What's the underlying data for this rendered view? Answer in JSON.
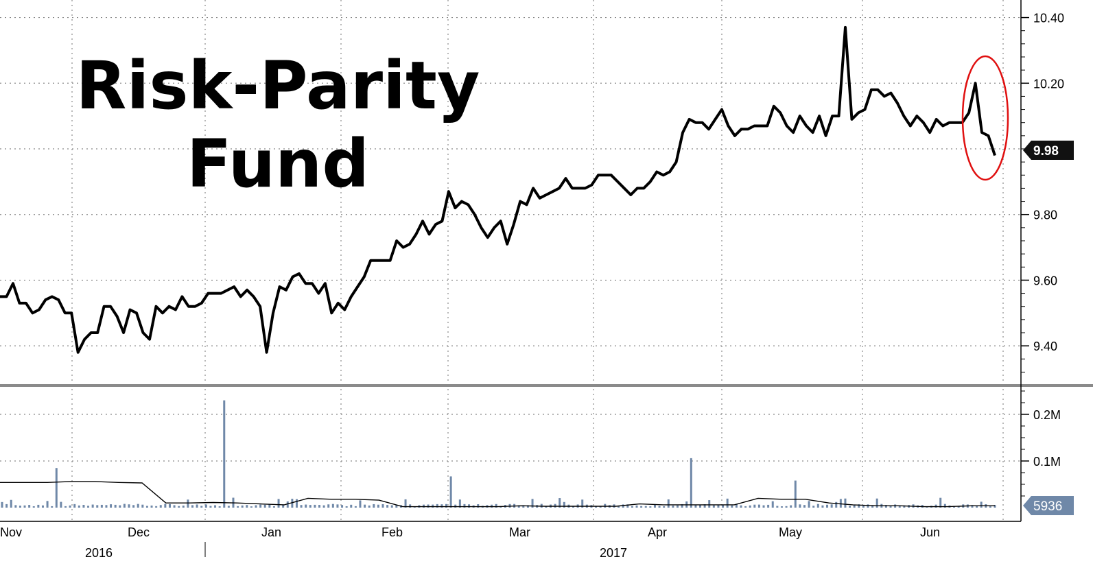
{
  "chart_data": [
    {
      "panel": "price",
      "type": "line",
      "title_lines": [
        "Risk-Parity",
        "Fund"
      ],
      "ylim": [
        9.3,
        10.42
      ],
      "yticks": [
        "10.40",
        "10.20",
        "9.80",
        "9.60",
        "9.40"
      ],
      "last_value_label": "9.98",
      "last_value": 9.98,
      "grid": true,
      "annotation": "red ellipse around the most recent decline",
      "series": [
        {
          "values": [
            9.55,
            9.55,
            9.59,
            9.53,
            9.53,
            9.5,
            9.51,
            9.54,
            9.55,
            9.54,
            9.5,
            9.5,
            9.38,
            9.42,
            9.44,
            9.44,
            9.52,
            9.52,
            9.49,
            9.44,
            9.51,
            9.5,
            9.44,
            9.42,
            9.52,
            9.5,
            9.52,
            9.51,
            9.55,
            9.52,
            9.52,
            9.53,
            9.56,
            9.56,
            9.56,
            9.57,
            9.58,
            9.55,
            9.57,
            9.55,
            9.52,
            9.38,
            9.5,
            9.58,
            9.57,
            9.61,
            9.62,
            9.59,
            9.59,
            9.56,
            9.59,
            9.5,
            9.53,
            9.51,
            9.55,
            9.58,
            9.61,
            9.66,
            9.66,
            9.66,
            9.66,
            9.72,
            9.7,
            9.71,
            9.74,
            9.78,
            9.74,
            9.77,
            9.78,
            9.87,
            9.82,
            9.84,
            9.83,
            9.8,
            9.76,
            9.73,
            9.76,
            9.78,
            9.71,
            9.77,
            9.84,
            9.83,
            9.88,
            9.85,
            9.86,
            9.87,
            9.88,
            9.91,
            9.88,
            9.88,
            9.88,
            9.89,
            9.92,
            9.92,
            9.92,
            9.9,
            9.88,
            9.86,
            9.88,
            9.88,
            9.9,
            9.93,
            9.92,
            9.93,
            9.96,
            10.05,
            10.09,
            10.08,
            10.08,
            10.06,
            10.09,
            10.12,
            10.07,
            10.04,
            10.06,
            10.06,
            10.07,
            10.07,
            10.07,
            10.13,
            10.11,
            10.07,
            10.05,
            10.1,
            10.07,
            10.05,
            10.1,
            10.04,
            10.1,
            10.1,
            10.37,
            10.09,
            10.11,
            10.12,
            10.18,
            10.18,
            10.16,
            10.17,
            10.14,
            10.1,
            10.07,
            10.1,
            10.08,
            10.05,
            10.09,
            10.07,
            10.08,
            10.08,
            10.08,
            10.11,
            10.2,
            10.05,
            10.04,
            9.98
          ]
        }
      ]
    },
    {
      "panel": "volume",
      "type": "bar",
      "ylim": [
        0,
        0.25
      ],
      "yunit": "M",
      "yticks": [
        "0.2M",
        "0.1M"
      ],
      "last_value_label": "5936",
      "grid": true,
      "spikes": [
        {
          "index": 12,
          "value": 0.085
        },
        {
          "index": 49,
          "value": 0.23
        },
        {
          "index": 99,
          "value": 0.067
        },
        {
          "index": 152,
          "value": 0.106
        },
        {
          "index": 175,
          "value": 0.058
        }
      ],
      "moving_average": [
        0.054,
        0.054,
        0.054,
        0.056,
        0.056,
        0.054,
        0.053,
        0.01,
        0.01,
        0.011,
        0.01,
        0.008,
        0.006,
        0.02,
        0.018,
        0.018,
        0.016,
        0.002,
        0.002,
        0.002,
        0.002,
        0.002,
        0.004,
        0.003,
        0.003,
        0.003,
        0.003,
        0.008,
        0.006,
        0.006,
        0.006,
        0.006,
        0.02,
        0.018,
        0.018,
        0.01,
        0.006,
        0.004,
        0.004,
        0.002,
        0.002,
        0.004,
        0.004
      ]
    }
  ],
  "x_axis": {
    "months": [
      "Nov",
      "Dec",
      "Jan",
      "Feb",
      "Mar",
      "Apr",
      "May",
      "Jun"
    ],
    "years": [
      "2016",
      "2017"
    ]
  },
  "colors": {
    "price_line": "#000000",
    "volume_bar": "#6f88a8",
    "ma_line": "#000000",
    "annotation": "#e01010",
    "divider": "#8a8a8a",
    "grid": "#888888",
    "last_label_dark_bg": "#111111",
    "last_label_blue_bg": "#6f88a8"
  }
}
